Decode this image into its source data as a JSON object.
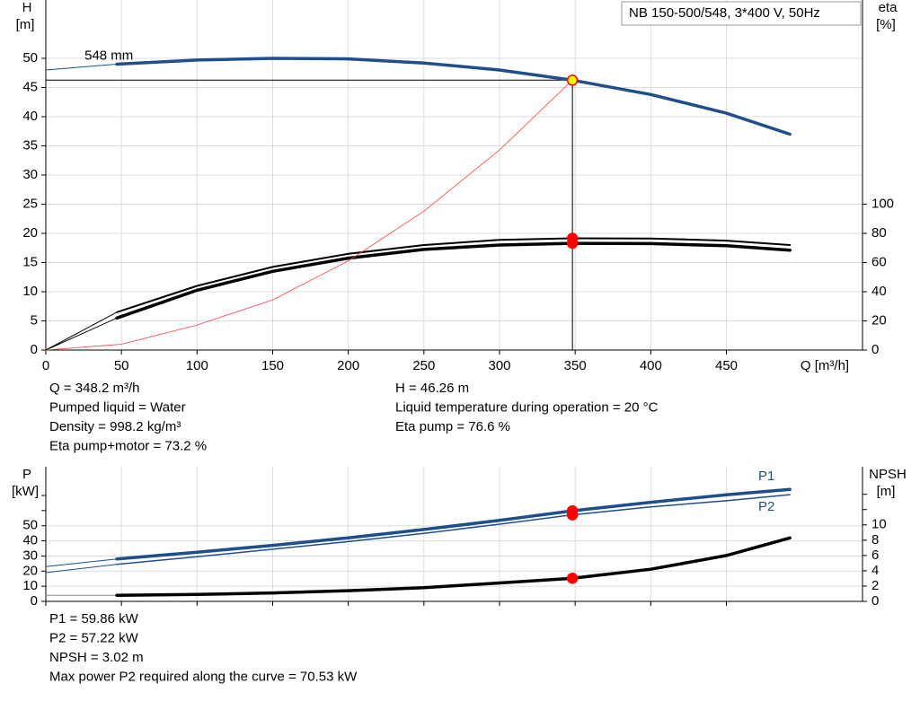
{
  "chart_data": [
    {
      "type": "line",
      "title": "NB 150-500/548, 3*400 V, 50Hz",
      "y_label": "H",
      "y_unit": "[m]",
      "y2_label": "eta",
      "y2_unit": "[%]",
      "x_label": "Q [m³/h]",
      "xlim": [
        0,
        540
      ],
      "xticks": [
        0,
        50,
        100,
        150,
        200,
        250,
        300,
        350,
        400,
        450
      ],
      "ylim": [
        0,
        60
      ],
      "yticks": [
        0,
        5,
        10,
        15,
        20,
        25,
        30,
        35,
        40,
        45,
        50
      ],
      "y2lim": [
        0,
        240
      ],
      "y2ticks": [
        0,
        20,
        40,
        60,
        80,
        100
      ],
      "grid": true,
      "operating_point": {
        "x": 348.2,
        "y": 46.26
      },
      "series": [
        {
          "color": "#1f4e8c",
          "width": 1,
          "x": [
            0,
            47
          ],
          "values": [
            48,
            49
          ]
        },
        {
          "name": "548 mm",
          "color": "#1f4e8c",
          "width": 3.5,
          "marker": "#ffff00",
          "x": [
            47,
            100,
            150,
            200,
            250,
            300,
            348.2,
            400,
            450,
            492
          ],
          "values": [
            49,
            49.7,
            50,
            49.9,
            49.2,
            48,
            46.26,
            43.8,
            40.6,
            37
          ]
        },
        {
          "color": "#000000",
          "width": 1,
          "axis": "y2",
          "x": [
            0,
            47
          ],
          "values": [
            0,
            26
          ]
        },
        {
          "color": "#000000",
          "width": 2,
          "axis": "y2",
          "marker": "#ff0000",
          "x": [
            47,
            100,
            150,
            200,
            250,
            300,
            348.2,
            400,
            450,
            492
          ],
          "values": [
            26,
            44,
            57,
            66,
            72,
            75.5,
            76.6,
            76.5,
            75,
            72
          ]
        },
        {
          "color": "#000000",
          "width": 1,
          "axis": "y2",
          "x": [
            0,
            47
          ],
          "values": [
            0,
            22
          ]
        },
        {
          "color": "#000000",
          "width": 3.5,
          "axis": "y2",
          "marker": "#ff0000",
          "x": [
            47,
            100,
            150,
            200,
            250,
            300,
            348.2,
            400,
            450,
            492
          ],
          "values": [
            22,
            41,
            54,
            63,
            69,
            72,
            73.2,
            73,
            71.5,
            68.5
          ]
        },
        {
          "color": "#ff4040",
          "width": 0.8,
          "x": [
            0,
            50,
            100,
            150,
            200,
            250,
            300,
            348.2
          ],
          "values": [
            0,
            1,
            4.3,
            8.6,
            15.3,
            23.8,
            34.3,
            46.26
          ]
        }
      ],
      "annotations_left": [
        "Q = 348.2 m³/h",
        "Pumped liquid = Water",
        "Density = 998.2 kg/m³",
        "Eta pump+motor = 73.2 %"
      ],
      "annotations_right": [
        "H = 46.26 m",
        "Liquid temperature during operation = 20 °C",
        "Eta pump = 76.6 %"
      ]
    },
    {
      "type": "line",
      "y_label": "P",
      "y_unit": "[kW]",
      "y2_label": "NPSH",
      "y2_unit": "[m]",
      "xlim": [
        0,
        540
      ],
      "xticks": [
        0,
        50,
        100,
        150,
        200,
        250,
        300,
        350,
        400,
        450
      ],
      "ylim": [
        0,
        89
      ],
      "yticks": [
        0,
        10,
        20,
        30,
        40,
        50
      ],
      "y_minor_ticks": [
        60,
        70
      ],
      "y2lim": [
        0,
        17.6
      ],
      "y2ticks": [
        0,
        2,
        4,
        6,
        8,
        10
      ],
      "y2_minor_ticks": [
        12,
        14
      ],
      "grid": true,
      "operating_point": {
        "x": 348.2
      },
      "series": [
        {
          "color": "#1f4e8c",
          "width": 1,
          "x": [
            0,
            47
          ],
          "values": [
            23,
            28
          ]
        },
        {
          "name": "P1",
          "color": "#1f4e8c",
          "width": 3.5,
          "marker": "#ff0000",
          "x": [
            47,
            100,
            150,
            200,
            250,
            300,
            348.2,
            400,
            450,
            492
          ],
          "values": [
            28,
            32.5,
            37,
            42,
            47.5,
            53.5,
            59.86,
            65.5,
            70.5,
            74
          ]
        },
        {
          "color": "#1f4e8c",
          "width": 1,
          "x": [
            0,
            47
          ],
          "values": [
            19,
            24.5
          ]
        },
        {
          "name": "P2",
          "color": "#1f4e8c",
          "width": 1.5,
          "marker": "#ff0000",
          "x": [
            47,
            100,
            150,
            200,
            250,
            300,
            348.2,
            400,
            450,
            492
          ],
          "values": [
            24.5,
            29.5,
            34.5,
            39.5,
            45,
            51,
            57.22,
            62.5,
            66.5,
            70.53
          ]
        },
        {
          "color": "#888888",
          "width": 1,
          "axis": "y2",
          "x": [
            0,
            47
          ],
          "values": [
            0.8,
            0.8
          ]
        },
        {
          "color": "#000000",
          "width": 3.5,
          "axis": "y2",
          "marker": "#ff0000",
          "x": [
            47,
            100,
            150,
            200,
            250,
            300,
            348.2,
            400,
            450,
            492
          ],
          "values": [
            0.8,
            0.9,
            1.1,
            1.4,
            1.8,
            2.4,
            3.02,
            4.2,
            6,
            8.3
          ]
        }
      ],
      "annotations_left": [
        "P1 = 59.86 kW",
        "P2 = 57.22 kW",
        "NPSH = 3.02 m",
        "Max power P2 required along the curve = 70.53 kW"
      ]
    }
  ]
}
